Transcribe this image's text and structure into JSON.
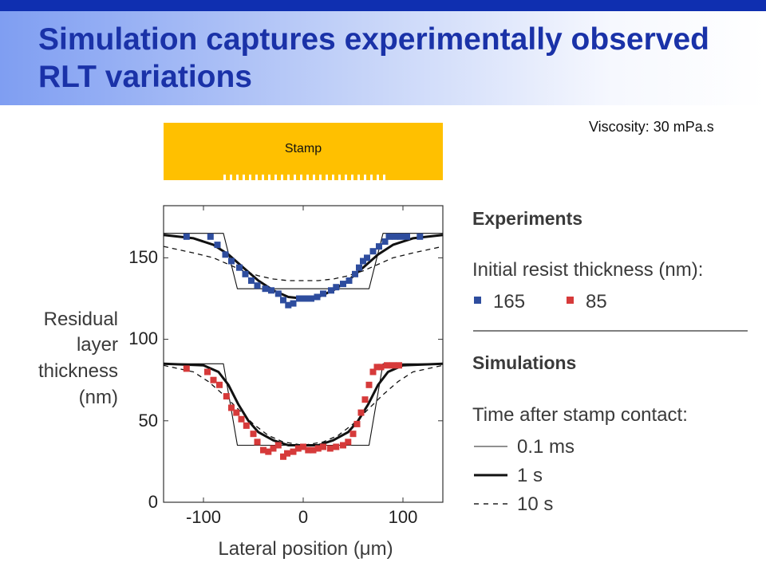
{
  "slide": {
    "title": "Simulation captures experimentally observed RLT variations",
    "viscosity": "Viscosity: 30 mPa.s",
    "stamp_label": "Stamp"
  },
  "colors": {
    "title": "#1a32a8",
    "topbar": "#0f2fb0",
    "stamp": "#ffc000",
    "series_165": "#2e4d9e",
    "series_85": "#d63a3a"
  },
  "chart_data": {
    "type": "scatter",
    "xlabel": "Lateral position (μm)",
    "ylabel": [
      "Residual",
      "layer",
      "thickness",
      "(nm)"
    ],
    "xlim": [
      -140,
      140
    ],
    "ylim": [
      0,
      182
    ],
    "xticks": [
      -100,
      0,
      100
    ],
    "yticks": [
      0,
      50,
      100,
      150
    ],
    "legend": {
      "experiments_heading": "Experiments",
      "initial_thickness_label": "Initial resist thickness (nm):",
      "series_165_label": "165",
      "series_85_label": "85",
      "simulations_heading": "Simulations",
      "time_label": "Time after stamp contact:",
      "sim_01ms_label": "0.1 ms",
      "sim_1s_label": "1 s",
      "sim_10s_label": "10 s"
    },
    "experiment_series": [
      {
        "name": "165",
        "color": "#2e4d9e",
        "points": [
          [
            -117,
            163
          ],
          [
            -93,
            163
          ],
          [
            -86,
            158
          ],
          [
            -78,
            152
          ],
          [
            -72,
            148
          ],
          [
            -64,
            144
          ],
          [
            -58,
            140
          ],
          [
            -52,
            136
          ],
          [
            -46,
            133
          ],
          [
            -38,
            131
          ],
          [
            -32,
            130
          ],
          [
            -25,
            128
          ],
          [
            -20,
            124
          ],
          [
            -15,
            121
          ],
          [
            -10,
            122
          ],
          [
            -4,
            125
          ],
          [
            2,
            125
          ],
          [
            8,
            125
          ],
          [
            14,
            126
          ],
          [
            20,
            128
          ],
          [
            28,
            130
          ],
          [
            33,
            132
          ],
          [
            40,
            134
          ],
          [
            46,
            136
          ],
          [
            52,
            140
          ],
          [
            56,
            144
          ],
          [
            60,
            148
          ],
          [
            64,
            150
          ],
          [
            70,
            154
          ],
          [
            76,
            157
          ],
          [
            82,
            160
          ],
          [
            86,
            163
          ],
          [
            92,
            163
          ],
          [
            98,
            163
          ],
          [
            104,
            163
          ],
          [
            117,
            163
          ]
        ]
      },
      {
        "name": "85",
        "color": "#d63a3a",
        "points": [
          [
            -117,
            82
          ],
          [
            -96,
            80
          ],
          [
            -90,
            75
          ],
          [
            -84,
            72
          ],
          [
            -77,
            65
          ],
          [
            -72,
            58
          ],
          [
            -67,
            55
          ],
          [
            -62,
            51
          ],
          [
            -57,
            47
          ],
          [
            -50,
            42
          ],
          [
            -46,
            37
          ],
          [
            -40,
            32
          ],
          [
            -35,
            31
          ],
          [
            -30,
            33
          ],
          [
            -25,
            35
          ],
          [
            -20,
            28
          ],
          [
            -16,
            30
          ],
          [
            -10,
            31
          ],
          [
            -5,
            33
          ],
          [
            0,
            34
          ],
          [
            5,
            32
          ],
          [
            10,
            32
          ],
          [
            15,
            33
          ],
          [
            20,
            34
          ],
          [
            27,
            33
          ],
          [
            33,
            34
          ],
          [
            40,
            35
          ],
          [
            45,
            37
          ],
          [
            50,
            42
          ],
          [
            54,
            48
          ],
          [
            58,
            55
          ],
          [
            62,
            63
          ],
          [
            66,
            72
          ],
          [
            70,
            80
          ],
          [
            74,
            83
          ],
          [
            78,
            83
          ],
          [
            84,
            84
          ],
          [
            90,
            84
          ],
          [
            96,
            84
          ]
        ]
      }
    ],
    "simulation_curves": [
      {
        "name": "0.1 ms",
        "style": "thin",
        "branches": [
          [
            [
              -140,
              165
            ],
            [
              -80,
              165
            ],
            [
              -66,
              131
            ],
            [
              66,
              131
            ],
            [
              80,
              165
            ],
            [
              140,
              165
            ]
          ],
          [
            [
              -140,
              85
            ],
            [
              -80,
              85
            ],
            [
              -66,
              35
            ],
            [
              66,
              35
            ],
            [
              80,
              85
            ],
            [
              140,
              85
            ]
          ]
        ]
      },
      {
        "name": "1 s",
        "style": "thick",
        "branches": [
          [
            [
              -140,
              164
            ],
            [
              -110,
              162
            ],
            [
              -90,
              158
            ],
            [
              -75,
              152
            ],
            [
              -60,
              144
            ],
            [
              -45,
              136
            ],
            [
              -30,
              130
            ],
            [
              -15,
              126
            ],
            [
              0,
              125
            ],
            [
              15,
              126
            ],
            [
              30,
              130
            ],
            [
              45,
              136
            ],
            [
              60,
              144
            ],
            [
              75,
              152
            ],
            [
              90,
              158
            ],
            [
              110,
              162
            ],
            [
              140,
              164
            ]
          ],
          [
            [
              -140,
              85
            ],
            [
              -100,
              84
            ],
            [
              -85,
              80
            ],
            [
              -75,
              72
            ],
            [
              -65,
              60
            ],
            [
              -55,
              50
            ],
            [
              -45,
              43
            ],
            [
              -30,
              38
            ],
            [
              -15,
              35
            ],
            [
              0,
              35
            ],
            [
              15,
              35
            ],
            [
              30,
              38
            ],
            [
              45,
              43
            ],
            [
              55,
              50
            ],
            [
              65,
              60
            ],
            [
              75,
              72
            ],
            [
              85,
              80
            ],
            [
              100,
              84
            ],
            [
              140,
              85
            ]
          ]
        ]
      },
      {
        "name": "10 s",
        "style": "dashed",
        "branches": [
          [
            [
              -140,
              157
            ],
            [
              -110,
              153
            ],
            [
              -90,
              150
            ],
            [
              -75,
              146
            ],
            [
              -60,
              142
            ],
            [
              -45,
              139
            ],
            [
              -30,
              137
            ],
            [
              -15,
              136
            ],
            [
              0,
              136
            ],
            [
              15,
              136
            ],
            [
              30,
              137
            ],
            [
              45,
              139
            ],
            [
              60,
              142
            ],
            [
              75,
              146
            ],
            [
              90,
              150
            ],
            [
              110,
              153
            ],
            [
              140,
              157
            ]
          ],
          [
            [
              -140,
              84
            ],
            [
              -110,
              80
            ],
            [
              -95,
              74
            ],
            [
              -80,
              66
            ],
            [
              -65,
              57
            ],
            [
              -50,
              48
            ],
            [
              -35,
              41
            ],
            [
              -20,
              37
            ],
            [
              0,
              35
            ],
            [
              20,
              37
            ],
            [
              35,
              41
            ],
            [
              50,
              48
            ],
            [
              65,
              57
            ],
            [
              80,
              66
            ],
            [
              95,
              74
            ],
            [
              110,
              80
            ],
            [
              140,
              84
            ]
          ]
        ]
      }
    ]
  }
}
